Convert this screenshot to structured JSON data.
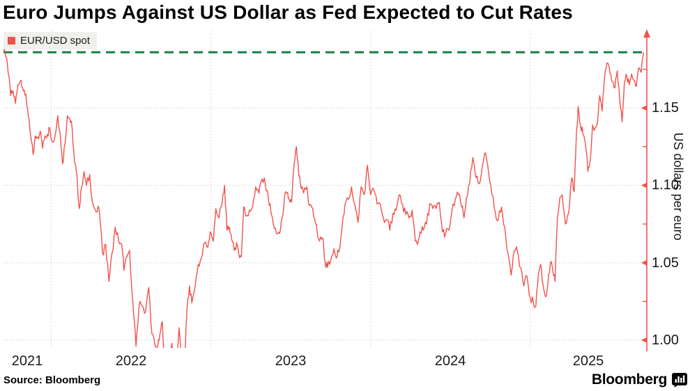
{
  "title": "Euro Jumps Against US Dollar as Fed Expected to Cut Rates",
  "legend": {
    "label": "EUR/USD spot",
    "marker_color": "#F0524B",
    "background": "#EFEFED"
  },
  "source": "Source: Bloomberg",
  "branding": {
    "wordmark": "Bloomberg",
    "icon": "bloomberg-bars-bubble-icon"
  },
  "colors": {
    "line": "#F0524B",
    "axis": "#F0524B",
    "reference": "#157F3F",
    "grid": "#CFCFCF",
    "text": "#161616"
  },
  "chart_data": {
    "type": "line",
    "title": "Euro Jumps Against US Dollar as Fed Expected to Cut Rates",
    "xlabel": "",
    "ylabel": "US dollars per euro",
    "x_tick_labels": [
      "2021",
      "2022",
      "2023",
      "2024",
      "2025"
    ],
    "y_tick_labels": [
      "1.00",
      "1.05",
      "1.10",
      "1.15"
    ],
    "y_ticks": [
      1.0,
      1.05,
      1.1,
      1.15
    ],
    "y_minor_ticks": [
      1.025,
      1.075,
      1.125,
      1.175
    ],
    "xlim": [
      2021.7,
      2025.73
    ],
    "ylim": [
      0.995,
      1.2
    ],
    "grid": "dotted",
    "legend_position": "top-left",
    "reference_line": {
      "value": 1.186,
      "style": "dashed",
      "color": "#157F3F",
      "meaning": "latest spot level"
    },
    "series": [
      {
        "name": "EUR/USD spot",
        "color": "#F0524B",
        "x_unit": "decimal_year",
        "points": [
          [
            2021.7,
            1.187
          ],
          [
            2021.705,
            1.191
          ],
          [
            2021.715,
            1.183
          ],
          [
            2021.73,
            1.172
          ],
          [
            2021.745,
            1.158
          ],
          [
            2021.76,
            1.161
          ],
          [
            2021.775,
            1.153
          ],
          [
            2021.79,
            1.165
          ],
          [
            2021.81,
            1.168
          ],
          [
            2021.825,
            1.161
          ],
          [
            2021.84,
            1.159
          ],
          [
            2021.855,
            1.145
          ],
          [
            2021.87,
            1.132
          ],
          [
            2021.885,
            1.12
          ],
          [
            2021.9,
            1.132
          ],
          [
            2021.915,
            1.131
          ],
          [
            2021.93,
            1.135
          ],
          [
            2021.945,
            1.124
          ],
          [
            2021.96,
            1.132
          ],
          [
            2021.975,
            1.133
          ],
          [
            2021.99,
            1.137
          ],
          [
            2022.01,
            1.128
          ],
          [
            2022.025,
            1.133
          ],
          [
            2022.04,
            1.145
          ],
          [
            2022.055,
            1.134
          ],
          [
            2022.07,
            1.114
          ],
          [
            2022.085,
            1.127
          ],
          [
            2022.1,
            1.145
          ],
          [
            2022.115,
            1.143
          ],
          [
            2022.13,
            1.137
          ],
          [
            2022.145,
            1.115
          ],
          [
            2022.16,
            1.106
          ],
          [
            2022.175,
            1.085
          ],
          [
            2022.19,
            1.099
          ],
          [
            2022.205,
            1.109
          ],
          [
            2022.22,
            1.1
          ],
          [
            2022.24,
            1.107
          ],
          [
            2022.26,
            1.088
          ],
          [
            2022.28,
            1.083
          ],
          [
            2022.3,
            1.084
          ],
          [
            2022.32,
            1.056
          ],
          [
            2022.34,
            1.062
          ],
          [
            2022.36,
            1.038
          ],
          [
            2022.38,
            1.056
          ],
          [
            2022.4,
            1.073
          ],
          [
            2022.42,
            1.065
          ],
          [
            2022.44,
            1.062
          ],
          [
            2022.455,
            1.045
          ],
          [
            2022.47,
            1.053
          ],
          [
            2022.49,
            1.058
          ],
          [
            2022.51,
            1.025
          ],
          [
            2022.53,
            0.996
          ],
          [
            2022.55,
            1.023
          ],
          [
            2022.57,
            1.022
          ],
          [
            2022.59,
            1.018
          ],
          [
            2022.61,
            1.034
          ],
          [
            2022.63,
            1.004
          ],
          [
            2022.65,
            0.996
          ],
          [
            2022.665,
            0.994
          ],
          [
            2022.68,
            1.004
          ],
          [
            2022.695,
            1.012
          ],
          [
            2022.71,
            0.984
          ],
          [
            2022.725,
            0.961
          ],
          [
            2022.74,
            0.98
          ],
          [
            2022.755,
            0.998
          ],
          [
            2022.77,
            0.977
          ],
          [
            2022.785,
            0.986
          ],
          [
            2022.8,
            1.008
          ],
          [
            2022.815,
            0.988
          ],
          [
            2022.83,
            0.975
          ],
          [
            2022.85,
            1.021
          ],
          [
            2022.865,
            1.035
          ],
          [
            2022.88,
            1.024
          ],
          [
            2022.9,
            1.034
          ],
          [
            2022.92,
            1.049
          ],
          [
            2022.94,
            1.053
          ],
          [
            2022.96,
            1.063
          ],
          [
            2022.98,
            1.06
          ],
          [
            2022.995,
            1.07
          ],
          [
            2023.015,
            1.064
          ],
          [
            2023.03,
            1.085
          ],
          [
            2023.05,
            1.079
          ],
          [
            2023.07,
            1.089
          ],
          [
            2023.085,
            1.1
          ],
          [
            2023.1,
            1.071
          ],
          [
            2023.115,
            1.073
          ],
          [
            2023.13,
            1.065
          ],
          [
            2023.145,
            1.058
          ],
          [
            2023.16,
            1.063
          ],
          [
            2023.175,
            1.055
          ],
          [
            2023.19,
            1.054
          ],
          [
            2023.205,
            1.086
          ],
          [
            2023.22,
            1.08
          ],
          [
            2023.24,
            1.084
          ],
          [
            2023.26,
            1.086
          ],
          [
            2023.28,
            1.099
          ],
          [
            2023.3,
            1.095
          ],
          [
            2023.32,
            1.104
          ],
          [
            2023.34,
            1.101
          ],
          [
            2023.36,
            1.091
          ],
          [
            2023.375,
            1.083
          ],
          [
            2023.39,
            1.075
          ],
          [
            2023.41,
            1.069
          ],
          [
            2023.43,
            1.069
          ],
          [
            2023.445,
            1.079
          ],
          [
            2023.46,
            1.092
          ],
          [
            2023.475,
            1.095
          ],
          [
            2023.49,
            1.091
          ],
          [
            2023.505,
            1.089
          ],
          [
            2023.52,
            1.113
          ],
          [
            2023.535,
            1.125
          ],
          [
            2023.55,
            1.106
          ],
          [
            2023.565,
            1.098
          ],
          [
            2023.58,
            1.095
          ],
          [
            2023.6,
            1.099
          ],
          [
            2023.615,
            1.087
          ],
          [
            2023.63,
            1.086
          ],
          [
            2023.65,
            1.078
          ],
          [
            2023.665,
            1.07
          ],
          [
            2023.68,
            1.064
          ],
          [
            2023.7,
            1.066
          ],
          [
            2023.715,
            1.05
          ],
          [
            2023.73,
            1.047
          ],
          [
            2023.75,
            1.051
          ],
          [
            2023.77,
            1.059
          ],
          [
            2023.785,
            1.053
          ],
          [
            2023.8,
            1.057
          ],
          [
            2023.82,
            1.072
          ],
          [
            2023.84,
            1.088
          ],
          [
            2023.86,
            1.091
          ],
          [
            2023.88,
            1.099
          ],
          [
            2023.9,
            1.088
          ],
          [
            2023.92,
            1.076
          ],
          [
            2023.94,
            1.099
          ],
          [
            2023.96,
            1.094
          ],
          [
            2023.98,
            1.113
          ],
          [
            2024.0,
            1.094
          ],
          [
            2024.02,
            1.097
          ],
          [
            2024.04,
            1.088
          ],
          [
            2024.06,
            1.088
          ],
          [
            2024.08,
            1.079
          ],
          [
            2024.1,
            1.078
          ],
          [
            2024.12,
            1.071
          ],
          [
            2024.14,
            1.082
          ],
          [
            2024.16,
            1.084
          ],
          [
            2024.18,
            1.094
          ],
          [
            2024.2,
            1.088
          ],
          [
            2024.22,
            1.081
          ],
          [
            2024.24,
            1.079
          ],
          [
            2024.26,
            1.084
          ],
          [
            2024.28,
            1.064
          ],
          [
            2024.295,
            1.062
          ],
          [
            2024.31,
            1.07
          ],
          [
            2024.33,
            1.071
          ],
          [
            2024.35,
            1.075
          ],
          [
            2024.37,
            1.088
          ],
          [
            2024.39,
            1.085
          ],
          [
            2024.41,
            1.085
          ],
          [
            2024.43,
            1.089
          ],
          [
            2024.45,
            1.07
          ],
          [
            2024.47,
            1.069
          ],
          [
            2024.49,
            1.071
          ],
          [
            2024.51,
            1.084
          ],
          [
            2024.53,
            1.091
          ],
          [
            2024.55,
            1.094
          ],
          [
            2024.57,
            1.086
          ],
          [
            2024.585,
            1.079
          ],
          [
            2024.6,
            1.092
          ],
          [
            2024.62,
            1.101
          ],
          [
            2024.64,
            1.118
          ],
          [
            2024.66,
            1.105
          ],
          [
            2024.68,
            1.101
          ],
          [
            2024.7,
            1.113
          ],
          [
            2024.72,
            1.121
          ],
          [
            2024.74,
            1.107
          ],
          [
            2024.76,
            1.094
          ],
          [
            2024.78,
            1.083
          ],
          [
            2024.8,
            1.078
          ],
          [
            2024.82,
            1.086
          ],
          [
            2024.84,
            1.073
          ],
          [
            2024.86,
            1.056
          ],
          [
            2024.88,
            1.042
          ],
          [
            2024.9,
            1.058
          ],
          [
            2024.92,
            1.057
          ],
          [
            2024.94,
            1.047
          ],
          [
            2024.96,
            1.035
          ],
          [
            2024.98,
            1.041
          ],
          [
            2025.0,
            1.027
          ],
          [
            2025.02,
            1.024
          ],
          [
            2025.035,
            1.022
          ],
          [
            2025.05,
            1.042
          ],
          [
            2025.065,
            1.049
          ],
          [
            2025.08,
            1.036
          ],
          [
            2025.095,
            1.028
          ],
          [
            2025.11,
            1.036
          ],
          [
            2025.125,
            1.049
          ],
          [
            2025.14,
            1.046
          ],
          [
            2025.155,
            1.038
          ],
          [
            2025.17,
            1.079
          ],
          [
            2025.185,
            1.092
          ],
          [
            2025.2,
            1.094
          ],
          [
            2025.22,
            1.075
          ],
          [
            2025.24,
            1.082
          ],
          [
            2025.26,
            1.105
          ],
          [
            2025.275,
            1.096
          ],
          [
            2025.29,
            1.136
          ],
          [
            2025.3,
            1.151
          ],
          [
            2025.315,
            1.139
          ],
          [
            2025.33,
            1.133
          ],
          [
            2025.35,
            1.123
          ],
          [
            2025.36,
            1.109
          ],
          [
            2025.375,
            1.116
          ],
          [
            2025.39,
            1.139
          ],
          [
            2025.405,
            1.137
          ],
          [
            2025.42,
            1.14
          ],
          [
            2025.435,
            1.158
          ],
          [
            2025.45,
            1.148
          ],
          [
            2025.465,
            1.17
          ],
          [
            2025.48,
            1.179
          ],
          [
            2025.5,
            1.172
          ],
          [
            2025.515,
            1.167
          ],
          [
            2025.53,
            1.163
          ],
          [
            2025.545,
            1.174
          ],
          [
            2025.56,
            1.155
          ],
          [
            2025.575,
            1.141
          ],
          [
            2025.59,
            1.167
          ],
          [
            2025.605,
            1.17
          ],
          [
            2025.62,
            1.165
          ],
          [
            2025.635,
            1.172
          ],
          [
            2025.65,
            1.168
          ],
          [
            2025.665,
            1.164
          ],
          [
            2025.68,
            1.176
          ],
          [
            2025.695,
            1.173
          ],
          [
            2025.71,
            1.186
          ]
        ]
      }
    ]
  }
}
